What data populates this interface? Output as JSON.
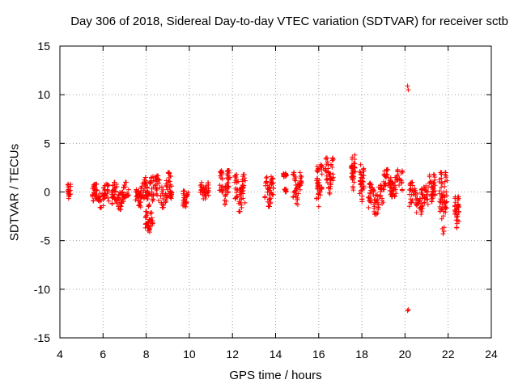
{
  "chart_data": {
    "type": "scatter",
    "title": "Day 306 of 2018, Sidereal Day-to-day VTEC variation (SDTVAR) for receiver sctb",
    "xlabel": "GPS time / hours",
    "ylabel": "SDTVAR / TECUs",
    "xlim": [
      4,
      24
    ],
    "ylim": [
      -15,
      15
    ],
    "xticks": [
      4,
      6,
      8,
      10,
      12,
      14,
      16,
      18,
      20,
      22,
      24
    ],
    "yticks": [
      -15,
      -10,
      -5,
      0,
      5,
      10,
      15
    ],
    "grid": true,
    "marker": "+",
    "marker_color": "#ff0000",
    "clusters": [
      {
        "x": [
          4.35,
          4.5
        ],
        "y": [
          -0.8,
          0.8
        ]
      },
      {
        "x": [
          5.5,
          6.3
        ],
        "y": [
          -1.6,
          0.8
        ]
      },
      {
        "x": [
          6.4,
          7.2
        ],
        "y": [
          -1.8,
          1.0
        ]
      },
      {
        "x": [
          7.5,
          7.9
        ],
        "y": [
          -1.6,
          0.9
        ]
      },
      {
        "x": [
          7.95,
          8.3
        ],
        "y": [
          -4.2,
          -2.0
        ]
      },
      {
        "x": [
          7.9,
          8.3
        ],
        "y": [
          -1.5,
          1.5
        ]
      },
      {
        "x": [
          8.3,
          9.2
        ],
        "y": [
          -1.6,
          2.0
        ]
      },
      {
        "x": [
          9.7,
          9.95
        ],
        "y": [
          -2.0,
          0.3
        ]
      },
      {
        "x": [
          10.5,
          10.9
        ],
        "y": [
          -0.8,
          1.0
        ]
      },
      {
        "x": [
          11.4,
          11.9
        ],
        "y": [
          -1.3,
          2.2
        ]
      },
      {
        "x": [
          12.1,
          12.6
        ],
        "y": [
          -2.0,
          1.8
        ]
      },
      {
        "x": [
          13.5,
          13.9
        ],
        "y": [
          -1.5,
          1.8
        ]
      },
      {
        "x": [
          14.3,
          14.5
        ],
        "y": [
          1.5,
          2.0
        ]
      },
      {
        "x": [
          14.4,
          14.5
        ],
        "y": [
          -0.1,
          0.3
        ]
      },
      {
        "x": [
          14.8,
          15.2
        ],
        "y": [
          -1.3,
          2.0
        ]
      },
      {
        "x": [
          15.9,
          16.15
        ],
        "y": [
          -1.6,
          2.8
        ]
      },
      {
        "x": [
          16.3,
          16.7
        ],
        "y": [
          -0.2,
          3.5
        ]
      },
      {
        "x": [
          17.5,
          17.7
        ],
        "y": [
          0.2,
          3.8
        ]
      },
      {
        "x": [
          17.9,
          18.1
        ],
        "y": [
          -1.0,
          2.8
        ]
      },
      {
        "x": [
          18.3,
          19.0
        ],
        "y": [
          -2.3,
          0.9
        ]
      },
      {
        "x": [
          19.0,
          19.9
        ],
        "y": [
          -0.5,
          2.3
        ]
      },
      {
        "x": [
          20.2,
          21.1
        ],
        "y": [
          -2.3,
          1.0
        ]
      },
      {
        "x": [
          21.1,
          21.4
        ],
        "y": [
          -1.0,
          1.8
        ]
      },
      {
        "x": [
          21.6,
          21.95
        ],
        "y": [
          -4.3,
          2.0
        ]
      },
      {
        "x": [
          22.3,
          22.5
        ],
        "y": [
          -3.8,
          -0.5
        ]
      }
    ],
    "outliers": [
      {
        "x": 20.12,
        "y": 10.9
      },
      {
        "x": 20.15,
        "y": 10.5
      },
      {
        "x": 20.12,
        "y": -12.2
      },
      {
        "x": 20.16,
        "y": -12.1
      }
    ]
  }
}
